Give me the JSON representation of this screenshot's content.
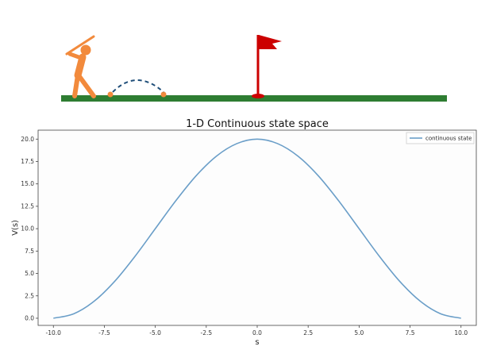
{
  "colors": {
    "golfer": "#F28A3C",
    "ball": "#F28A3C",
    "ground": "#2E7D32",
    "flag": "#CC0000",
    "trajectory": "#1F4E79",
    "hole": "#CC0000",
    "curve": "#6A9EC8"
  },
  "scene": {
    "icons": [
      "golfer-icon",
      "ball-icon",
      "trajectory-arc",
      "flag-icon",
      "hole-icon",
      "ground-bar"
    ]
  },
  "chart_data": {
    "type": "line",
    "title": "1-D Continuous state space",
    "xlabel": "s",
    "ylabel": "V(s)",
    "xlim": [
      -10.75,
      10.75
    ],
    "ylim": [
      -0.8,
      21.0
    ],
    "xticks": [
      "-10.0",
      "-7.5",
      "-5.0",
      "-2.5",
      "0.0",
      "2.5",
      "5.0",
      "7.5",
      "10.0"
    ],
    "xtick_values": [
      -10,
      -7.5,
      -5,
      -2.5,
      0,
      2.5,
      5,
      7.5,
      10
    ],
    "yticks": [
      "0.0",
      "2.5",
      "5.0",
      "7.5",
      "10.0",
      "12.5",
      "15.0",
      "17.5",
      "20.0"
    ],
    "ytick_values": [
      0,
      2.5,
      5,
      7.5,
      10,
      12.5,
      15,
      17.5,
      20
    ],
    "grid": false,
    "legend_position": "top-right",
    "series": [
      {
        "name": "continuous state",
        "x": [
          -10,
          -9,
          -8,
          -7,
          -6,
          -5,
          -4,
          -3,
          -2,
          -1,
          0,
          1,
          2,
          3,
          4,
          5,
          6,
          7,
          8,
          9,
          10
        ],
        "y": [
          0.0,
          0.5,
          1.9,
          4.1,
          6.9,
          10.0,
          13.1,
          15.9,
          18.1,
          19.5,
          20.0,
          19.5,
          18.1,
          15.9,
          13.1,
          10.0,
          6.9,
          4.1,
          1.9,
          0.5,
          0.0
        ]
      }
    ]
  }
}
